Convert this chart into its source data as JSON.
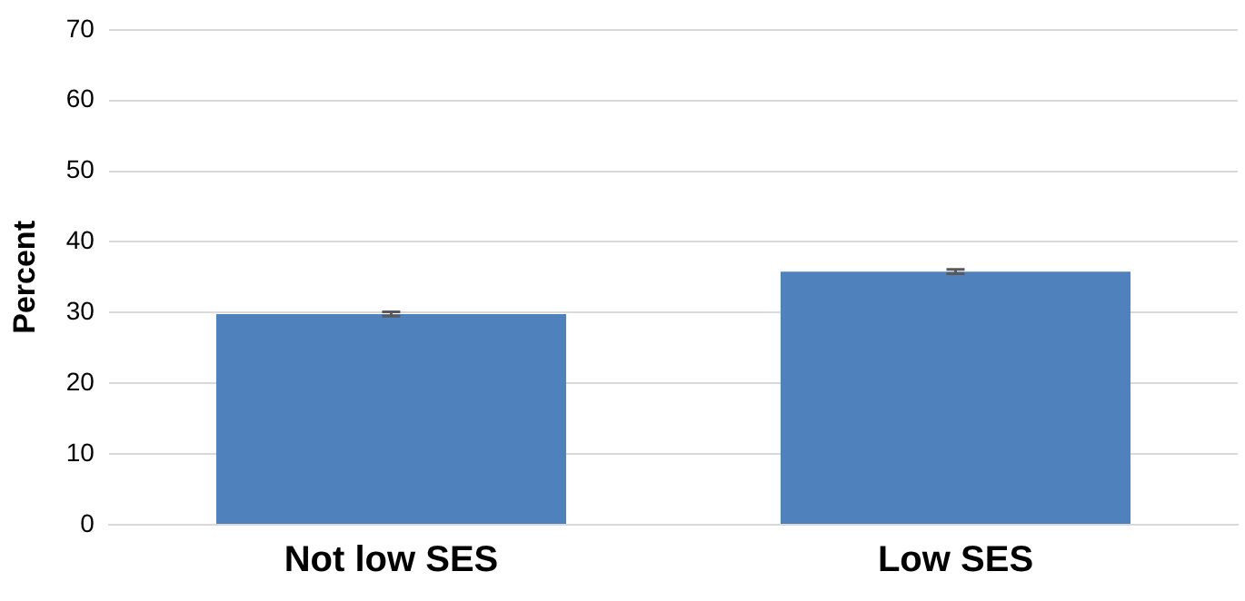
{
  "chart_data": {
    "type": "bar",
    "ylabel": "Percent",
    "categories": [
      "Not low SES",
      "Low SES"
    ],
    "values": [
      29.8,
      35.8
    ],
    "errors": [
      0.3,
      0.3
    ],
    "color": "#4f81bd",
    "ylim": [
      0,
      70
    ],
    "yticks": [
      0,
      10,
      20,
      30,
      40,
      50,
      60,
      70
    ],
    "grid": "y",
    "legend": false
  }
}
